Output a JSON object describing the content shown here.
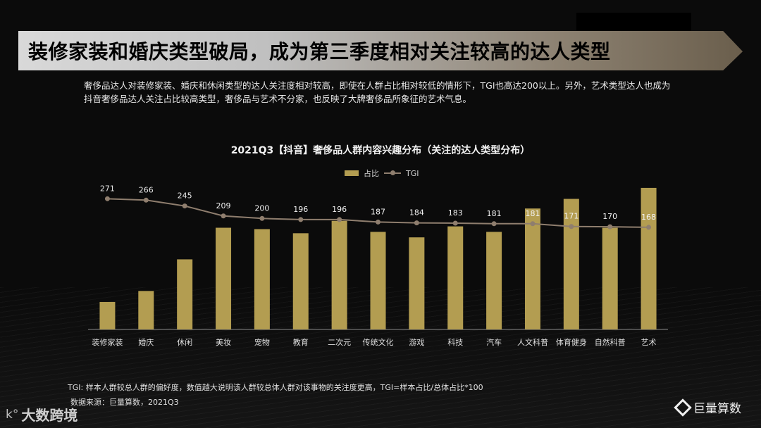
{
  "header": {
    "title": "装修家装和婚庆类型破局，成为第三季度相对关注较高的达人类型",
    "subtitle": "奢侈品达人对装修家装、婚庆和休闲类型的达人关注度相对较高，即使在人群占比相对较低的情形下，TGI也高达200以上。另外，艺术类型达人也成为抖音奢侈品达人关注占比较高类型，奢侈品与艺术不分家，也反映了大牌奢侈品所象征的艺术气息。"
  },
  "legend": {
    "bar_label": "占比",
    "line_label": "TGI"
  },
  "footer": {
    "note": "TGI: 样本人群较总人群的偏好度，数值越大说明该人群较总体人群对该事物的关注度更高，TGI=样本占比/总体占比*100",
    "source": "数据来源：巨量算数，2021Q3"
  },
  "watermarks": {
    "left_mark": "k°",
    "left_text": "大数跨境",
    "right_text": "巨量算数"
  },
  "colors": {
    "bar": "#b39d51",
    "line": "#8f7e6e",
    "axis": "#8a8a8a",
    "bar_label": "#f2f2f2",
    "tgi_label": "#e6e6e6"
  },
  "chart_data": {
    "type": "bar",
    "title": "2021Q3【抖音】奢侈品人群内容兴趣分布（关注的达人类型分布）",
    "categories": [
      "装修家装",
      "婚庆",
      "休闲",
      "美妆",
      "宠物",
      "教育",
      "二次元",
      "传统文化",
      "游戏",
      "科技",
      "汽车",
      "人文科普",
      "体育健身",
      "自然科普",
      "艺术"
    ],
    "series": [
      {
        "name": "占比",
        "type": "bar",
        "values": [
          2.0,
          2.8,
          5.1,
          7.4,
          7.3,
          7.0,
          7.9,
          7.1,
          6.7,
          7.5,
          7.1,
          8.8,
          9.5,
          7.4,
          10.3
        ]
      },
      {
        "name": "TGI",
        "type": "line",
        "values": [
          271,
          266,
          245,
          209,
          200,
          196,
          196,
          187,
          184,
          183,
          181,
          181,
          171,
          170,
          168
        ]
      }
    ],
    "ylim_bar": [
      0,
      10.5
    ],
    "ylim_line": [
      -200,
      320
    ],
    "grid": false,
    "legend_position": "top-center"
  }
}
